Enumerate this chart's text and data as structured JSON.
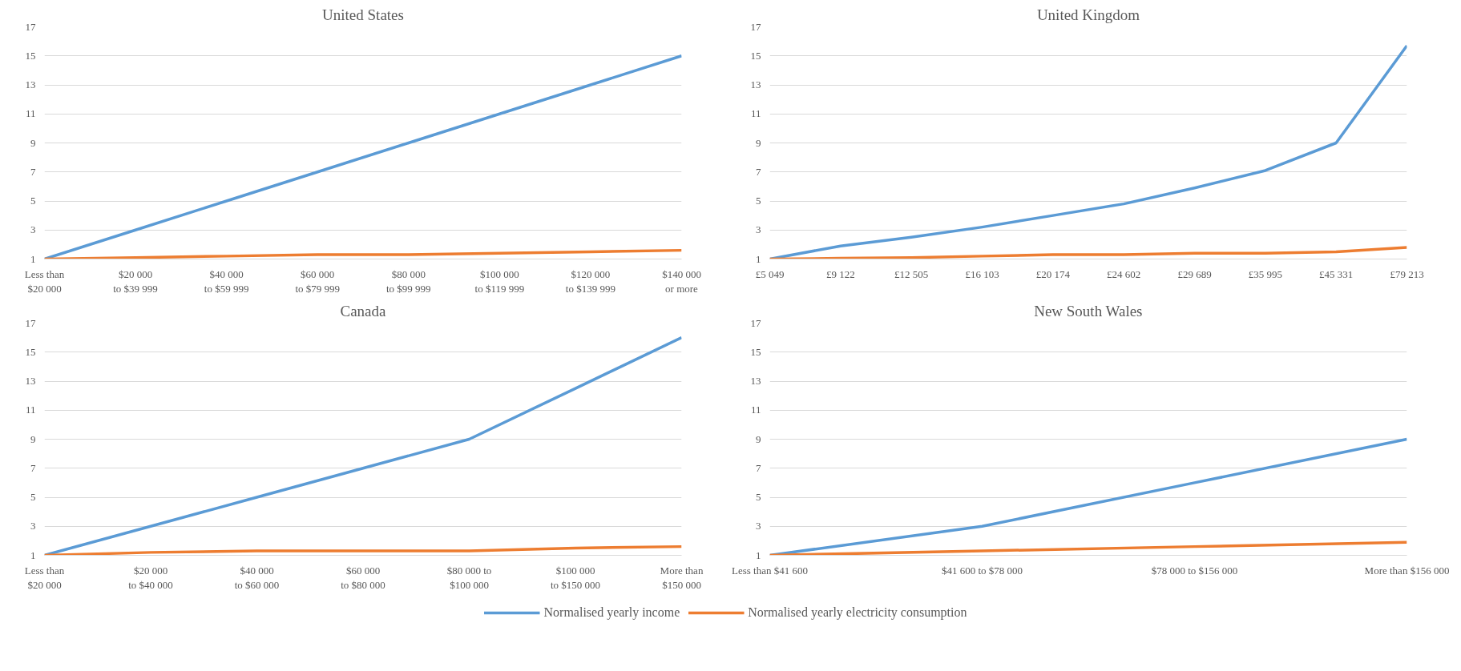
{
  "chart_data": [
    {
      "type": "line",
      "title": "United States",
      "categories": [
        "Less than $20 000",
        "$20 000 to $39 999",
        "$40 000 to $59 999",
        "$60 000 to $79 999",
        "$80 000 to $99 999",
        "$100 000 to $119 999",
        "$120 000 to $139 999",
        "$140 000 or more"
      ],
      "ylim": [
        1,
        17
      ],
      "yticks": [
        1,
        3,
        5,
        7,
        9,
        11,
        13,
        15,
        17
      ],
      "grid": "y",
      "series": [
        {
          "color": "#5b9bd5",
          "values": [
            1,
            3,
            5,
            7,
            9,
            11,
            13,
            15
          ]
        },
        {
          "color": "#ed7d31",
          "values": [
            1,
            1.1,
            1.2,
            1.3,
            1.3,
            1.4,
            1.5,
            1.6
          ]
        }
      ]
    },
    {
      "type": "line",
      "title": "United Kingdom",
      "categories": [
        "£5 049",
        "£9 122",
        "£12 505",
        "£16 103",
        "£20 174",
        "£24 602",
        "£29 689",
        "£35 995",
        "£45 331",
        "£79 213"
      ],
      "ylim": [
        1,
        17
      ],
      "yticks": [
        1,
        3,
        5,
        7,
        9,
        11,
        13,
        15,
        17
      ],
      "grid": "y",
      "series": [
        {
          "color": "#5b9bd5",
          "values": [
            1,
            1.9,
            2.5,
            3.2,
            4.0,
            4.8,
            5.9,
            7.1,
            9,
            15.7
          ]
        },
        {
          "color": "#ed7d31",
          "values": [
            1,
            1.05,
            1.1,
            1.2,
            1.3,
            1.3,
            1.4,
            1.4,
            1.5,
            1.8
          ]
        }
      ]
    },
    {
      "type": "line",
      "title": "Canada",
      "categories": [
        "Less than $20 000",
        "$20 000 to $40 000",
        "$40 000 to $60 000",
        "$60 000 to $80 000",
        "$80 000 to $100 000",
        "$100 000 to $150 000",
        "More than $150 000"
      ],
      "ylim": [
        1,
        17
      ],
      "yticks": [
        1,
        3,
        5,
        7,
        9,
        11,
        13,
        15,
        17
      ],
      "grid": "y",
      "series": [
        {
          "color": "#5b9bd5",
          "values": [
            1,
            3,
            5,
            7,
            9,
            12.5,
            16
          ]
        },
        {
          "color": "#ed7d31",
          "values": [
            1,
            1.2,
            1.3,
            1.3,
            1.3,
            1.5,
            1.6
          ]
        }
      ]
    },
    {
      "type": "line",
      "title": "New South Wales",
      "categories": [
        "Less than $41 600",
        "$41 600 to $78 000",
        "$78 000 to $156 000",
        "More than $156 000"
      ],
      "ylim": [
        1,
        17
      ],
      "yticks": [
        1,
        3,
        5,
        7,
        9,
        11,
        13,
        15,
        17
      ],
      "grid": "y",
      "legend": "bottom",
      "series": [
        {
          "name": "Normalised yearly income",
          "color": "#5b9bd5",
          "values": [
            1,
            3,
            6,
            9
          ]
        },
        {
          "name": "Normalised yearly electricity consumption",
          "color": "#ed7d31",
          "values": [
            1,
            1.3,
            1.6,
            1.9
          ]
        }
      ]
    }
  ]
}
